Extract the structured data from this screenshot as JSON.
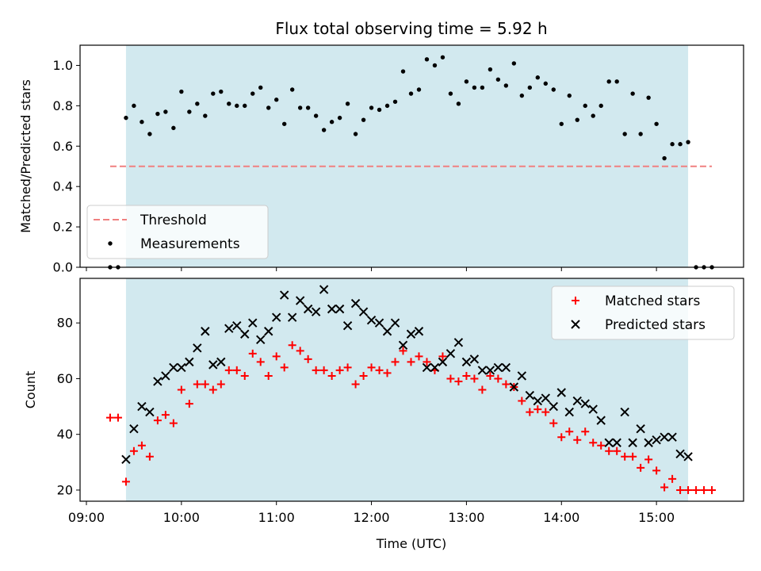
{
  "chart_data": [
    {
      "type": "scatter",
      "title": "Flux total observing time = 5.92 h",
      "xlabel": "",
      "ylabel": "Matched/Predicted stars",
      "xlim": [
        "08:56",
        "15:55"
      ],
      "ylim": [
        0,
        1.1
      ],
      "yticks": [
        0.0,
        0.2,
        0.4,
        0.6,
        0.8,
        1.0
      ],
      "ytick_labels": [
        "0.0",
        "0.2",
        "0.4",
        "0.6",
        "0.8",
        "1.0"
      ],
      "observing_window": {
        "start": "09:25",
        "end": "15:20",
        "color": "#d2e9ef"
      },
      "legend": {
        "position": "lower-left",
        "entries": [
          "Threshold",
          "Measurements"
        ]
      },
      "threshold": {
        "name": "Threshold",
        "y": 0.5,
        "x_range": [
          "09:15",
          "15:35"
        ],
        "color": "#f08080",
        "style": "dashed"
      },
      "series": [
        {
          "name": "Measurements",
          "color": "#000000",
          "marker": "dot",
          "x": [
            "09:15",
            "09:20",
            "09:25",
            "09:30",
            "09:35",
            "09:40",
            "09:45",
            "09:50",
            "09:55",
            "10:00",
            "10:05",
            "10:10",
            "10:15",
            "10:20",
            "10:25",
            "10:30",
            "10:35",
            "10:40",
            "10:45",
            "10:50",
            "10:55",
            "11:00",
            "11:05",
            "11:10",
            "11:15",
            "11:20",
            "11:25",
            "11:30",
            "11:35",
            "11:40",
            "11:45",
            "11:50",
            "11:55",
            "12:00",
            "12:05",
            "12:10",
            "12:15",
            "12:20",
            "12:25",
            "12:30",
            "12:35",
            "12:40",
            "12:45",
            "12:50",
            "12:55",
            "13:00",
            "13:05",
            "13:10",
            "13:15",
            "13:20",
            "13:25",
            "13:30",
            "13:35",
            "13:40",
            "13:45",
            "13:50",
            "13:55",
            "14:00",
            "14:05",
            "14:10",
            "14:15",
            "14:20",
            "14:25",
            "14:30",
            "14:35",
            "14:40",
            "14:45",
            "14:50",
            "14:55",
            "15:00",
            "15:05",
            "15:10",
            "15:15",
            "15:20",
            "15:25",
            "15:30",
            "15:35"
          ],
          "y": [
            0.0,
            0.0,
            0.74,
            0.8,
            0.72,
            0.66,
            0.76,
            0.77,
            0.69,
            0.87,
            0.77,
            0.81,
            0.75,
            0.86,
            0.87,
            0.81,
            0.8,
            0.8,
            0.86,
            0.89,
            0.79,
            0.83,
            0.71,
            0.88,
            0.79,
            0.79,
            0.75,
            0.68,
            0.72,
            0.74,
            0.81,
            0.66,
            0.73,
            0.79,
            0.78,
            0.8,
            0.82,
            0.97,
            0.86,
            0.88,
            1.03,
            1.0,
            1.04,
            0.86,
            0.81,
            0.92,
            0.89,
            0.89,
            0.98,
            0.93,
            0.9,
            1.01,
            0.85,
            0.89,
            0.94,
            0.91,
            0.88,
            0.71,
            0.85,
            0.73,
            0.8,
            0.75,
            0.8,
            0.92,
            0.92,
            0.66,
            0.86,
            0.66,
            0.84,
            0.71,
            0.54,
            0.61,
            0.61,
            0.62,
            0.0,
            0.0,
            0.0
          ]
        }
      ]
    },
    {
      "type": "scatter",
      "title": "",
      "xlabel": "Time (UTC)",
      "ylabel": "Count",
      "xlim": [
        "08:56",
        "15:55"
      ],
      "ylim": [
        16,
        96
      ],
      "yticks": [
        20,
        40,
        60,
        80
      ],
      "ytick_labels": [
        "20",
        "40",
        "60",
        "80"
      ],
      "xticks": [
        "09:00",
        "10:00",
        "11:00",
        "12:00",
        "13:00",
        "14:00",
        "15:00"
      ],
      "observing_window": {
        "start": "09:25",
        "end": "15:20",
        "color": "#d2e9ef"
      },
      "legend": {
        "position": "top-right",
        "entries": [
          "Matched stars",
          "Predicted stars"
        ]
      },
      "series": [
        {
          "name": "Matched stars",
          "color": "#ff0000",
          "marker": "plus",
          "x": [
            "09:15",
            "09:20",
            "09:25",
            "09:30",
            "09:35",
            "09:40",
            "09:45",
            "09:50",
            "09:55",
            "10:00",
            "10:05",
            "10:10",
            "10:15",
            "10:20",
            "10:25",
            "10:30",
            "10:35",
            "10:40",
            "10:45",
            "10:50",
            "10:55",
            "11:00",
            "11:05",
            "11:10",
            "11:15",
            "11:20",
            "11:25",
            "11:30",
            "11:35",
            "11:40",
            "11:45",
            "11:50",
            "11:55",
            "12:00",
            "12:05",
            "12:10",
            "12:15",
            "12:20",
            "12:25",
            "12:30",
            "12:35",
            "12:40",
            "12:45",
            "12:50",
            "12:55",
            "13:00",
            "13:05",
            "13:10",
            "13:15",
            "13:20",
            "13:25",
            "13:30",
            "13:35",
            "13:40",
            "13:45",
            "13:50",
            "13:55",
            "14:00",
            "14:05",
            "14:10",
            "14:15",
            "14:20",
            "14:25",
            "14:30",
            "14:35",
            "14:40",
            "14:45",
            "14:50",
            "14:55",
            "15:00",
            "15:05",
            "15:10",
            "15:15",
            "15:20",
            "15:25",
            "15:30",
            "15:35"
          ],
          "y": [
            46,
            46,
            23,
            34,
            36,
            32,
            45,
            47,
            44,
            56,
            51,
            58,
            58,
            56,
            58,
            63,
            63,
            61,
            69,
            66,
            61,
            68,
            64,
            72,
            70,
            67,
            63,
            63,
            61,
            63,
            64,
            58,
            61,
            64,
            63,
            62,
            66,
            70,
            66,
            68,
            66,
            63,
            68,
            60,
            59,
            61,
            60,
            56,
            61,
            60,
            58,
            57,
            52,
            48,
            49,
            48,
            44,
            39,
            41,
            38,
            41,
            37,
            36,
            34,
            34,
            32,
            32,
            28,
            31,
            27,
            21,
            24,
            20,
            20,
            20,
            20,
            20
          ]
        },
        {
          "name": "Predicted stars",
          "color": "#000000",
          "marker": "x",
          "x": [
            "09:25",
            "09:30",
            "09:35",
            "09:40",
            "09:45",
            "09:50",
            "09:55",
            "10:00",
            "10:05",
            "10:10",
            "10:15",
            "10:20",
            "10:25",
            "10:30",
            "10:35",
            "10:40",
            "10:45",
            "10:50",
            "10:55",
            "11:00",
            "11:05",
            "11:10",
            "11:15",
            "11:20",
            "11:25",
            "11:30",
            "11:35",
            "11:40",
            "11:45",
            "11:50",
            "11:55",
            "12:00",
            "12:05",
            "12:10",
            "12:15",
            "12:20",
            "12:25",
            "12:30",
            "12:35",
            "12:40",
            "12:45",
            "12:50",
            "12:55",
            "13:00",
            "13:05",
            "13:10",
            "13:15",
            "13:20",
            "13:25",
            "13:30",
            "13:35",
            "13:40",
            "13:45",
            "13:50",
            "13:55",
            "14:00",
            "14:05",
            "14:10",
            "14:15",
            "14:20",
            "14:25",
            "14:30",
            "14:35",
            "14:40",
            "14:45",
            "14:50",
            "14:55",
            "15:00",
            "15:05",
            "15:10",
            "15:15",
            "15:20"
          ],
          "y": [
            31,
            42,
            50,
            48,
            59,
            61,
            64,
            64,
            66,
            71,
            77,
            65,
            66,
            78,
            79,
            76,
            80,
            74,
            77,
            82,
            90,
            82,
            88,
            85,
            84,
            92,
            85,
            85,
            79,
            87,
            84,
            81,
            80,
            77,
            80,
            72,
            76,
            77,
            64,
            64,
            66,
            69,
            73,
            66,
            67,
            63,
            63,
            64,
            64,
            57,
            61,
            54,
            52,
            53,
            50,
            55,
            48,
            52,
            51,
            49,
            45,
            37,
            37,
            48,
            37,
            42,
            37,
            38,
            39,
            39,
            33,
            32
          ]
        }
      ]
    }
  ]
}
